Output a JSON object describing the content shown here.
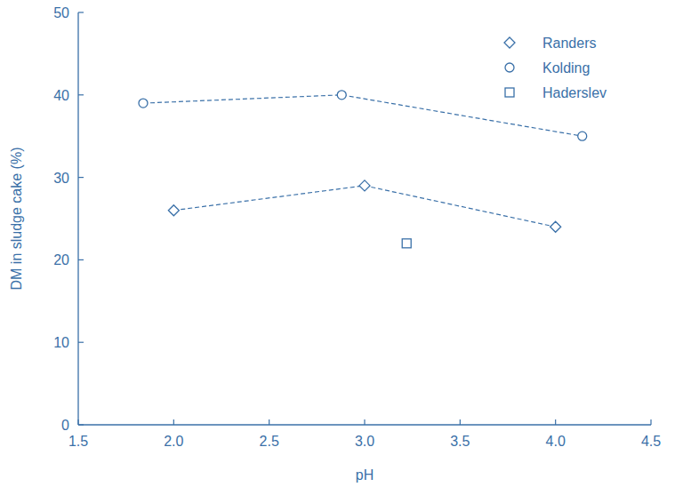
{
  "chart_data": {
    "type": "scatter",
    "x_label": "pH",
    "y_label": "DM in sludge cake (%)",
    "xlim": [
      1.5,
      4.5
    ],
    "xticks": [
      1.5,
      {
        "value": 2,
        "label": "2.0"
      },
      2.5,
      {
        "value": 3,
        "label": "3.0"
      },
      3.5,
      {
        "value": 4,
        "label": "4.0"
      },
      4.5
    ],
    "ylim": [
      0,
      50
    ],
    "yticks": [
      0,
      10,
      20,
      30,
      40,
      50
    ],
    "legend": "upper right",
    "grid": false,
    "color": "#3a70a8",
    "series": [
      {
        "name": "Randers",
        "color": "#3a70a8",
        "marker": "diamond",
        "line_style": "dashed",
        "x": [
          2.0,
          3.0,
          4.0
        ],
        "values": [
          26,
          29,
          24
        ]
      },
      {
        "name": "Kolding",
        "color": "#3a70a8",
        "marker": "circle",
        "line_style": "dashed",
        "x": [
          1.84,
          2.88,
          4.14
        ],
        "values": [
          39,
          40,
          35
        ]
      },
      {
        "name": "Haderslev",
        "color": "#3a70a8",
        "marker": "square",
        "line_style": "none",
        "x": [
          3.22
        ],
        "values": [
          22
        ]
      }
    ]
  }
}
